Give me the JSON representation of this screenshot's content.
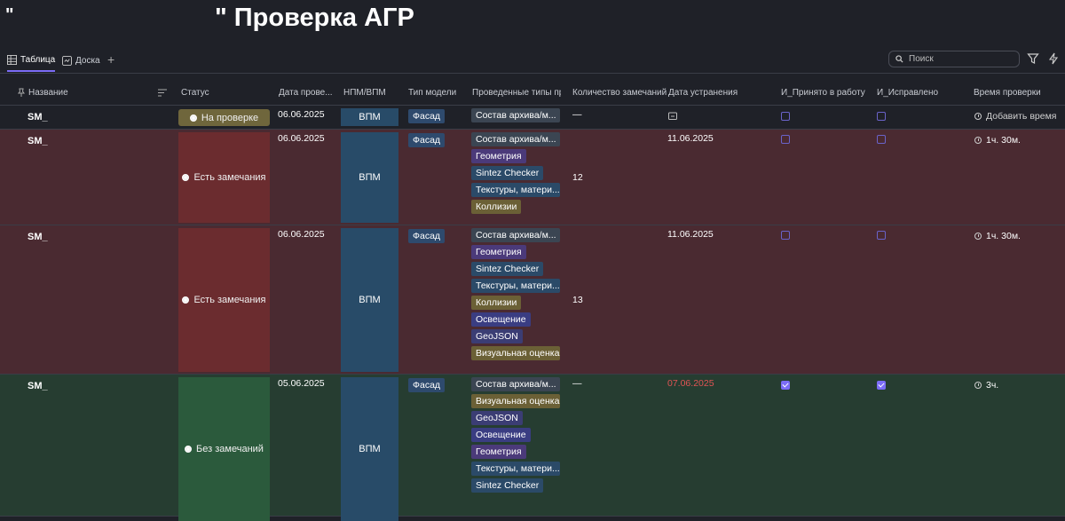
{
  "title": {
    "mark": "\"",
    "text": "\" Проверка АГР"
  },
  "views": {
    "table": "Таблица",
    "board": "Доска"
  },
  "search": {
    "placeholder": "Поиск"
  },
  "columns": {
    "name": "Название",
    "status": "Статус",
    "check_date": "Дата прове...",
    "npm": "НПМ/ВПМ",
    "model_type": "Тип модели",
    "check_types": "Проведенные типы пр...",
    "remarks": "Количество замечаний",
    "fix_date": "Дата устранения",
    "accepted": "И_Принято в работу",
    "fixed": "И_Исправлено",
    "time": "Время проверки"
  },
  "rows": [
    {
      "name": "SM_",
      "status": "На проверке",
      "check_date": "06.06.2025",
      "npm": "ВПМ",
      "model": "Фасад",
      "tags": [
        "Состав архива/м..."
      ],
      "remarks": "—",
      "fix_date": "",
      "accepted": false,
      "fixed": false,
      "time": "Добавить время"
    },
    {
      "name": "SM_",
      "status": "Есть замечания",
      "check_date": "06.06.2025",
      "npm": "ВПМ",
      "model": "Фасад",
      "tags": [
        "Состав архива/м...",
        "Геометрия",
        "Sintez Checker",
        "Текстуры, матери...",
        "Коллизии"
      ],
      "remarks": "12",
      "fix_date": "11.06.2025",
      "accepted": false,
      "fixed": false,
      "time": "1ч. 30м."
    },
    {
      "name": "SM_",
      "status": "Есть замечания",
      "check_date": "06.06.2025",
      "npm": "ВПМ",
      "model": "Фасад",
      "tags": [
        "Состав архива/м...",
        "Геометрия",
        "Sintez Checker",
        "Текстуры, матери...",
        "Коллизии",
        "Освещение",
        "GeoJSON",
        "Визуальная оценка"
      ],
      "remarks": "13",
      "fix_date": "11.06.2025",
      "accepted": false,
      "fixed": false,
      "time": "1ч. 30м."
    },
    {
      "name": "SM_",
      "status": "Без замечаний",
      "check_date": "05.06.2025",
      "npm": "ВПМ",
      "model": "Фасад",
      "tags": [
        "Состав архива/м...",
        "Визуальная оценка",
        "GeoJSON",
        "Освещение",
        "Геометрия",
        "Текстуры, матери...",
        "Sintez Checker"
      ],
      "remarks": "—",
      "fix_date": "07.06.2025",
      "accepted": true,
      "fixed": true,
      "time": "3ч."
    }
  ],
  "tag_colors": {
    "Состав архива/м...": "#3b4552",
    "Геометрия": "#4b3a7a",
    "Sintez Checker": "#2b4a68",
    "Текстуры, матери...": "#2b4a68",
    "Коллизии": "#6b6036",
    "Освещение": "#3a3d82",
    "GeoJSON": "#3b3d74",
    "Визуальная оценка": "#6b6036"
  }
}
